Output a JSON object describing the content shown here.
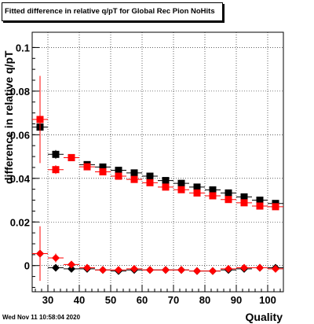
{
  "title": "Fitted difference in relative q/pT for Global Rec Pion NoHits",
  "footer_stamp": "Wed Nov 11 10:58:04 2020",
  "chart_data": {
    "type": "scatter",
    "title": "Fitted difference in relative q/pT for Global Rec Pion NoHits",
    "xlabel": "Quality",
    "ylabel": "difference in relative q/pT",
    "xlim": [
      25,
      105
    ],
    "ylim": [
      -0.012,
      0.107
    ],
    "x_ticks": [
      "30",
      "40",
      "50",
      "60",
      "70",
      "80",
      "90",
      "100"
    ],
    "y_ticks": [
      "0",
      "0.02",
      "0.04",
      "0.06",
      "0.08",
      "0.1"
    ],
    "grid": true,
    "series": [
      {
        "marker": "square",
        "color": "#000000",
        "x": [
          27.5,
          32.5,
          37.5,
          42.5,
          47.5,
          52.5,
          57.5,
          62.5,
          67.5,
          72.5,
          77.5,
          82.5,
          87.5,
          92.5,
          97.5,
          102.5
        ],
        "y": [
          0.0635,
          0.051,
          0.0495,
          0.0463,
          0.0452,
          0.0437,
          0.0425,
          0.041,
          0.039,
          0.0377,
          0.036,
          0.0347,
          0.0333,
          0.0315,
          0.03,
          0.0285
        ],
        "yerr": [
          0.004,
          0.002,
          0.0015,
          0.0012,
          0.001,
          0.001,
          0.001,
          0.001,
          0.001,
          0.001,
          0.001,
          0.001,
          0.001,
          0.001,
          0.001,
          0.001
        ]
      },
      {
        "marker": "square",
        "color": "#ff0000",
        "x": [
          27.5,
          32.5,
          37.5,
          42.5,
          47.5,
          52.5,
          57.5,
          62.5,
          67.5,
          72.5,
          77.5,
          82.5,
          87.5,
          92.5,
          97.5,
          102.5
        ],
        "y": [
          0.067,
          0.044,
          0.0495,
          0.0453,
          0.043,
          0.041,
          0.0395,
          0.038,
          0.036,
          0.0348,
          0.0333,
          0.032,
          0.0303,
          0.0288,
          0.0273,
          0.027
        ],
        "yerr": [
          0.02,
          0.002,
          0.0015,
          0.0012,
          0.001,
          0.001,
          0.001,
          0.001,
          0.001,
          0.001,
          0.001,
          0.001,
          0.001,
          0.001,
          0.001,
          0.001
        ]
      },
      {
        "marker": "diamond",
        "color": "#000000",
        "x": [
          27.5,
          32.5,
          37.5,
          42.5,
          47.5,
          52.5,
          57.5,
          62.5,
          67.5,
          72.5,
          77.5,
          82.5,
          87.5,
          92.5,
          97.5,
          102.5
        ],
        "y": [
          0.0055,
          -0.001,
          -0.0015,
          -0.0015,
          -0.002,
          -0.0025,
          -0.002,
          -0.002,
          -0.002,
          -0.002,
          -0.0025,
          -0.0025,
          -0.002,
          -0.0015,
          -0.001,
          -0.001
        ],
        "yerr": [
          0.002,
          0.001,
          0.0008,
          0.0008,
          0.0006,
          0.0006,
          0.0006,
          0.0006,
          0.0006,
          0.0006,
          0.0006,
          0.0006,
          0.0006,
          0.0006,
          0.0006,
          0.0006
        ]
      },
      {
        "marker": "diamond",
        "color": "#ff0000",
        "x": [
          27.5,
          32.5,
          37.5,
          42.5,
          47.5,
          52.5,
          57.5,
          62.5,
          67.5,
          72.5,
          77.5,
          82.5,
          87.5,
          92.5,
          97.5,
          102.5
        ],
        "y": [
          0.0055,
          0.0035,
          0.0005,
          -0.001,
          -0.002,
          -0.002,
          -0.0015,
          -0.002,
          -0.002,
          -0.002,
          -0.0025,
          -0.0025,
          -0.0015,
          -0.001,
          -0.001,
          -0.0015
        ],
        "yerr": [
          0.0125,
          0.002,
          0.001,
          0.0008,
          0.0006,
          0.0006,
          0.0006,
          0.0006,
          0.0006,
          0.0006,
          0.0006,
          0.0006,
          0.0006,
          0.0006,
          0.0006,
          0.0006
        ]
      }
    ]
  }
}
